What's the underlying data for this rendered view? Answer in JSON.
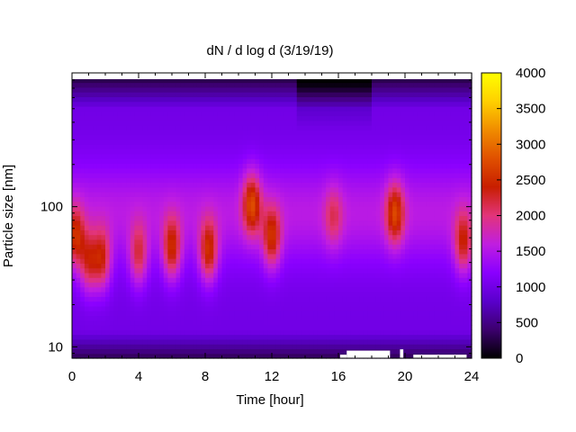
{
  "chart_data": {
    "type": "heatmap",
    "title": "dN / d log d (3/19/19)",
    "xlabel": "Time [hour]",
    "ylabel": "Particle size [nm]",
    "xlim": [
      0,
      24
    ],
    "x_ticks": [
      0,
      4,
      8,
      12,
      16,
      20,
      24
    ],
    "x_tick_labels": [
      "0",
      "4",
      "8",
      "12",
      "16",
      "20",
      "24"
    ],
    "y_scale": "log",
    "ylim": [
      8.3,
      900
    ],
    "y_ticks": [
      10,
      100
    ],
    "y_tick_labels": [
      "10",
      "100"
    ],
    "colorbar": {
      "range": [
        0,
        4000
      ],
      "ticks": [
        0,
        500,
        1000,
        1500,
        2000,
        2500,
        3000,
        3500,
        4000
      ],
      "tick_labels": [
        "0",
        "500",
        "1000",
        "1500",
        "2000",
        "2500",
        "3000",
        "3500",
        "4000"
      ],
      "colormap": "gnuplot",
      "colors": [
        "#000000",
        "#3c006e",
        "#5a00cc",
        "#8a00ff",
        "#c01ee0",
        "#e2347a",
        "#c81e00",
        "#e05000",
        "#f08c00",
        "#ffd000",
        "#ffff00"
      ]
    },
    "background_level": 1000,
    "low_size_level": 300,
    "top_size_level": 120,
    "events": [
      {
        "time_h": 0.2,
        "size_nm": 60,
        "peak": 2300
      },
      {
        "time_h": 1.0,
        "size_nm": 40,
        "peak": 2200
      },
      {
        "time_h": 1.8,
        "size_nm": 42,
        "peak": 2300
      },
      {
        "time_h": 4.0,
        "size_nm": 45,
        "peak": 2150
      },
      {
        "time_h": 6.0,
        "size_nm": 50,
        "peak": 2400
      },
      {
        "time_h": 8.2,
        "size_nm": 48,
        "peak": 2450
      },
      {
        "time_h": 10.8,
        "size_nm": 105,
        "peak": 2450
      },
      {
        "time_h": 12.0,
        "size_nm": 60,
        "peak": 2350
      },
      {
        "time_h": 15.7,
        "size_nm": 85,
        "peak": 1800
      },
      {
        "time_h": 19.4,
        "size_nm": 90,
        "peak": 2400
      },
      {
        "time_h": 23.5,
        "size_nm": 55,
        "peak": 2250
      }
    ],
    "missing_data": [
      {
        "time_range_h": [
          16.1,
          16.5
        ],
        "size_range_nm": [
          8.3,
          8.8
        ]
      },
      {
        "time_range_h": [
          16.5,
          19.1
        ],
        "size_range_nm": [
          8.3,
          9.4
        ]
      },
      {
        "time_range_h": [
          19.7,
          19.9
        ],
        "size_range_nm": [
          8.3,
          9.6
        ]
      },
      {
        "time_range_h": [
          20.5,
          23.7
        ],
        "size_range_nm": [
          8.3,
          8.8
        ]
      }
    ]
  }
}
